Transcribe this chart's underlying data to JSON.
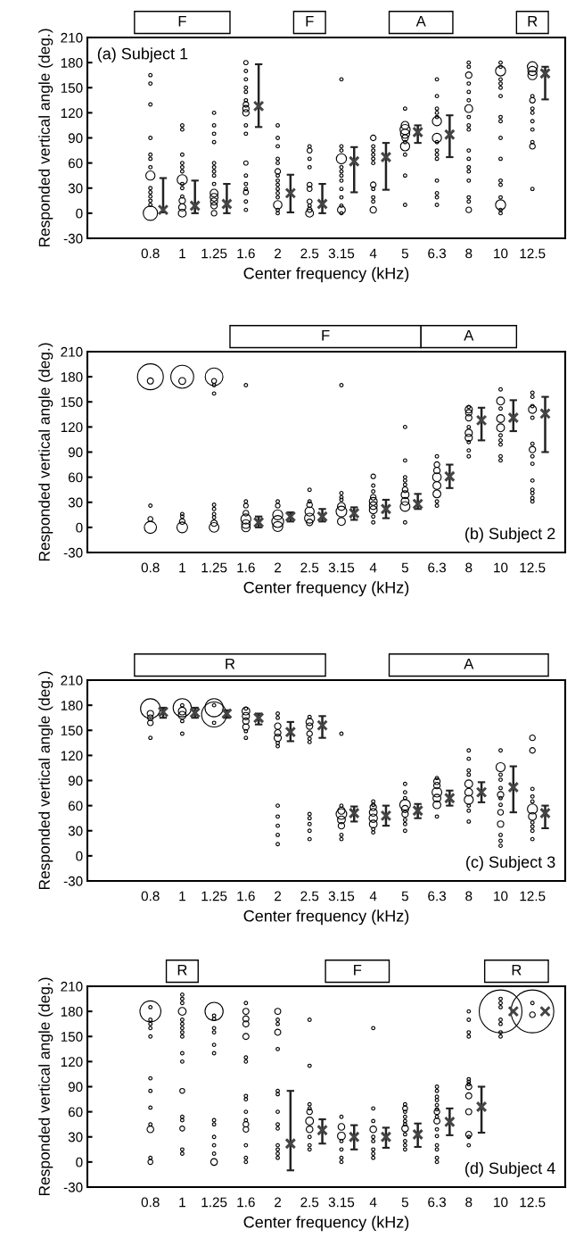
{
  "chart_data": [
    {
      "type": "bubble",
      "xlabel": "Center frequency (kHz)",
      "ylabel": "Responded vertical angle (deg.)",
      "annotations": [
        "(a) Subject 1",
        "F",
        "F",
        "A",
        "R"
      ],
      "categories": [
        "0.8",
        "1",
        "1.25",
        "1.6",
        "2",
        "2.5",
        "3.15",
        "4",
        "5",
        "6.3",
        "8",
        "10",
        "12.5"
      ],
      "ylim": [
        -30,
        210
      ],
      "yticks": [
        -30,
        0,
        30,
        60,
        90,
        120,
        150,
        180,
        210
      ],
      "series": [
        {
          "type": "bubble",
          "color": "#000000",
          "x": [
            "0.8",
            "0.8",
            "0.8",
            "0.8",
            "0.8",
            "0.8",
            "0.8",
            "0.8",
            "0.8",
            "0.8",
            "0.8",
            "0.8",
            "0.8",
            "0.8",
            "1",
            "1",
            "1",
            "1",
            "1",
            "1",
            "1",
            "1",
            "1",
            "1",
            "1",
            "1",
            "1",
            "1.25",
            "1.25",
            "1.25",
            "1.25",
            "1.25",
            "1.25",
            "1.25",
            "1.25",
            "1.25",
            "1.25",
            "1.25",
            "1.25",
            "1.25",
            "1.25",
            "1.6",
            "1.6",
            "1.6",
            "1.6",
            "1.6",
            "1.6",
            "1.6",
            "1.6",
            "1.6",
            "1.6",
            "1.6",
            "1.6",
            "1.6",
            "1.6",
            "1.6",
            "1.6",
            "1.6",
            "1.6",
            "2",
            "2",
            "2",
            "2",
            "2",
            "2",
            "2",
            "2",
            "2",
            "2",
            "2",
            "2",
            "2",
            "2",
            "2",
            "2.5",
            "2.5",
            "2.5",
            "2.5",
            "2.5",
            "2.5",
            "2.5",
            "2.5",
            "2.5",
            "2.5",
            "3.15",
            "3.15",
            "3.15",
            "3.15",
            "3.15",
            "3.15",
            "3.15",
            "3.15",
            "3.15",
            "3.15",
            "3.15",
            "3.15",
            "3.15",
            "4",
            "4",
            "4",
            "4",
            "4",
            "4",
            "4",
            "4",
            "4",
            "4",
            "4",
            "5",
            "5",
            "5",
            "5",
            "5",
            "5",
            "5",
            "5",
            "5",
            "5",
            "6.3",
            "6.3",
            "6.3",
            "6.3",
            "6.3",
            "6.3",
            "6.3",
            "6.3",
            "6.3",
            "6.3",
            "6.3",
            "6.3",
            "6.3",
            "6.3",
            "6.3",
            "8",
            "8",
            "8",
            "8",
            "8",
            "8",
            "8",
            "8",
            "8",
            "8",
            "8",
            "8",
            "8",
            "8",
            "8",
            "8",
            "8",
            "8",
            "10",
            "10",
            "10",
            "10",
            "10",
            "10",
            "10",
            "10",
            "10",
            "10",
            "10",
            "10",
            "10",
            "10",
            "10",
            "10",
            "10",
            "12.5",
            "12.5",
            "12.5",
            "12.5",
            "12.5",
            "12.5",
            "12.5",
            "12.5",
            "12.5",
            "12.5",
            "12.5",
            "12.5"
          ],
          "values": [
            165,
            155,
            130,
            90,
            70,
            65,
            55,
            45,
            30,
            25,
            20,
            15,
            10,
            0,
            105,
            100,
            70,
            60,
            55,
            50,
            40,
            35,
            30,
            20,
            15,
            7,
            0,
            120,
            105,
            95,
            85,
            60,
            55,
            50,
            45,
            35,
            24,
            19,
            14,
            9,
            0,
            180,
            170,
            160,
            150,
            145,
            135,
            130,
            125,
            120,
            105,
            95,
            60,
            45,
            35,
            29,
            25,
            14,
            4,
            105,
            90,
            80,
            65,
            60,
            50,
            45,
            39,
            34,
            29,
            24,
            19,
            10,
            4,
            0,
            80,
            75,
            65,
            55,
            34,
            29,
            14,
            9,
            4,
            0,
            160,
            80,
            75,
            65,
            55,
            50,
            45,
            39,
            29,
            19,
            9,
            4,
            0,
            90,
            80,
            75,
            70,
            65,
            60,
            34,
            29,
            19,
            14,
            4,
            125,
            105,
            100,
            95,
            90,
            85,
            80,
            70,
            45,
            10,
            160,
            140,
            125,
            120,
            115,
            110,
            90,
            85,
            75,
            70,
            65,
            39,
            24,
            19,
            10,
            180,
            175,
            165,
            155,
            145,
            135,
            125,
            115,
            105,
            100,
            75,
            65,
            55,
            50,
            39,
            19,
            14,
            4,
            180,
            175,
            170,
            160,
            155,
            150,
            140,
            115,
            110,
            90,
            65,
            39,
            34,
            19,
            10,
            4,
            0,
            175,
            170,
            165,
            140,
            135,
            125,
            120,
            110,
            100,
            85,
            80,
            29
          ],
          "sizes": [
            0.055,
            0.055,
            0.055,
            0.055,
            0.055,
            0.055,
            0.055,
            0.41,
            0.055,
            0.055,
            0.055,
            0.055,
            0.055,
            1,
            0.055,
            0.055,
            0.055,
            0.055,
            0.055,
            0.055,
            0.5,
            0.055,
            0.055,
            0.055,
            0.2,
            0.25,
            0.3,
            0.055,
            0.055,
            0.055,
            0.055,
            0.055,
            0.055,
            0.055,
            0.055,
            0.055,
            0.3,
            0.3,
            0.25,
            0.2,
            0.15,
            0.09,
            0.055,
            0.055,
            0.055,
            0.055,
            0.055,
            0.15,
            0.2,
            0.2,
            0.055,
            0.055,
            0.09,
            0.055,
            0.055,
            0.055,
            0.12,
            0.055,
            0.055,
            0.055,
            0.055,
            0.055,
            0.055,
            0.055,
            0.15,
            0.055,
            0.055,
            0.055,
            0.055,
            0.055,
            0.055,
            0.35,
            0.055,
            0.055,
            0.055,
            0.12,
            0.055,
            0.055,
            0.12,
            0.12,
            0.12,
            0.055,
            0.12,
            0.3,
            0.055,
            0.055,
            0.055,
            0.5,
            0.055,
            0.055,
            0.055,
            0.055,
            0.055,
            0.055,
            0.055,
            0.3,
            0.055,
            0.15,
            0.055,
            0.055,
            0.055,
            0.055,
            0.055,
            0.15,
            0.055,
            0.055,
            0.055,
            0.2,
            0.055,
            0.3,
            0.5,
            0.41,
            0.2,
            0.055,
            0.41,
            0.055,
            0.055,
            0.055,
            0.055,
            0.055,
            0.055,
            0.055,
            0.055,
            0.41,
            0.41,
            0.055,
            0.055,
            0.055,
            0.055,
            0.055,
            0.055,
            0.055,
            0.055,
            0.055,
            0.055,
            0.2,
            0.055,
            0.055,
            0.055,
            0.3,
            0.055,
            0.055,
            0.055,
            0.055,
            0.055,
            0.055,
            0.055,
            0.055,
            0.055,
            0.055,
            0.15,
            0.055,
            0.055,
            0.5,
            0.055,
            0.055,
            0.055,
            0.055,
            0.055,
            0.055,
            0.055,
            0.055,
            0.055,
            0.055,
            0.055,
            0.5,
            0.055,
            0.055,
            0.5,
            0.41,
            0.41,
            0.055,
            0.15,
            0.055,
            0.055,
            0.055,
            0.055,
            0.055,
            0.15,
            0.055
          ]
        },
        {
          "type": "scatter",
          "color": "#444444",
          "marker": "cross",
          "x": [
            "0.8",
            "1",
            "1.25",
            "1.6",
            "2",
            "2.5",
            "3.15",
            "4",
            "5",
            "6.3",
            "12.5"
          ],
          "values": [
            4,
            9,
            11,
            128,
            24,
            11,
            62,
            67,
            97,
            94,
            167
          ],
          "errors": [
            [
              1,
              42
            ],
            [
              0,
              39
            ],
            [
              0,
              35
            ],
            [
              103,
              178
            ],
            [
              1,
              46
            ],
            [
              0,
              35
            ],
            [
              25,
              79
            ],
            [
              28,
              84
            ],
            [
              84,
              105
            ],
            [
              67,
              117
            ],
            [
              136,
              175
            ]
          ]
        }
      ]
    },
    {
      "type": "bubble",
      "xlabel": "Center frequency (kHz)",
      "ylabel": "Responded vertical angle (deg.)",
      "annotations": [
        "(b) Subject 2",
        "F",
        "A"
      ],
      "categories": [
        "0.8",
        "1",
        "1.25",
        "1.6",
        "2",
        "2.5",
        "3.15",
        "4",
        "5",
        "6.3",
        "8",
        "10",
        "12.5"
      ],
      "ylim": [
        -30,
        210
      ],
      "yticks": [
        -30,
        0,
        30,
        60,
        90,
        120,
        150,
        180,
        210
      ],
      "series": [
        {
          "type": "bubble",
          "color": "#000000",
          "x": [
            "0.8",
            "0.8",
            "0.8",
            "0.8",
            "0.8",
            "1",
            "1",
            "1",
            "1",
            "1",
            "1",
            "1.25",
            "1.25",
            "1.25",
            "1.25",
            "1.25",
            "1.25",
            "1.25",
            "1.25",
            "1.25",
            "1.25",
            "1.6",
            "1.6",
            "1.6",
            "1.6",
            "1.6",
            "1.6",
            "1.6",
            "2",
            "2",
            "2",
            "2",
            "2",
            "2.5",
            "2.5",
            "2.5",
            "2.5",
            "2.5",
            "2.5",
            "3.15",
            "3.15",
            "3.15",
            "3.15",
            "3.15",
            "3.15",
            "3.15",
            "4",
            "4",
            "4",
            "4",
            "4",
            "4",
            "4",
            "4",
            "4",
            "5",
            "5",
            "5",
            "5",
            "5",
            "5",
            "5",
            "5",
            "5",
            "5",
            "6.3",
            "6.3",
            "6.3",
            "6.3",
            "6.3",
            "6.3",
            "6.3",
            "6.3",
            "8",
            "8",
            "8",
            "8",
            "8",
            "8",
            "8",
            "8",
            "8",
            "8",
            "10",
            "10",
            "10",
            "10",
            "10",
            "10",
            "10",
            "10",
            "10",
            "10",
            "12.5",
            "12.5",
            "12.5",
            "12.5",
            "12.5",
            "12.5",
            "12.5",
            "12.5",
            "12.5",
            "12.5",
            "12.5",
            "12.5",
            "12.5",
            "12.5"
          ],
          "values": [
            180,
            175,
            26,
            10,
            0,
            180,
            175,
            16,
            13,
            7,
            0,
            180,
            175,
            170,
            160,
            27,
            22,
            16,
            12,
            5,
            0,
            170,
            31,
            26,
            17,
            10,
            4,
            0,
            31,
            26,
            15,
            7,
            1,
            45,
            31,
            27,
            19,
            11,
            6,
            170,
            41,
            36,
            33,
            25,
            19,
            7,
            61,
            50,
            43,
            36,
            31,
            26,
            21,
            13,
            6,
            120,
            80,
            60,
            56,
            51,
            45,
            39,
            31,
            25,
            6,
            85,
            75,
            68,
            60,
            50,
            40,
            31,
            26,
            144,
            141,
            137,
            131,
            120,
            113,
            107,
            102,
            92,
            85,
            165,
            151,
            142,
            130,
            119,
            110,
            104,
            99,
            85,
            80,
            161,
            156,
            145,
            141,
            131,
            100,
            93,
            85,
            76,
            56,
            45,
            41,
            35,
            31
          ],
          "sizes": [
            1,
            0.056,
            0.017,
            0.036,
            0.22,
            0.78,
            0.07,
            0.017,
            0.017,
            0.047,
            0.17,
            0.47,
            0.036,
            0.017,
            0.017,
            0.017,
            0.017,
            0.017,
            0.017,
            0.061,
            0.14,
            0.017,
            0.017,
            0.031,
            0.047,
            0.15,
            0.11,
            0.11,
            0.017,
            0.031,
            0.15,
            0.21,
            0.15,
            0.017,
            0.017,
            0.047,
            0.125,
            0.15,
            0.061,
            0.017,
            0.017,
            0.017,
            0.017,
            0.092,
            0.17,
            0.092,
            0.031,
            0.017,
            0.017,
            0.047,
            0.092,
            0.092,
            0.092,
            0.017,
            0.017,
            0.017,
            0.017,
            0.017,
            0.017,
            0.017,
            0.047,
            0.092,
            0.092,
            0.14,
            0.017,
            0.017,
            0.047,
            0.061,
            0.11,
            0.092,
            0.092,
            0.017,
            0.017,
            0.017,
            0.078,
            0.061,
            0.061,
            0.017,
            0.078,
            0.078,
            0.017,
            0.017,
            0.017,
            0.017,
            0.092,
            0.017,
            0.092,
            0.092,
            0.017,
            0.017,
            0.017,
            0.017,
            0.017,
            0.017,
            0.017,
            0.017,
            0.092,
            0.017,
            0.017,
            0.061,
            0.017,
            0.017,
            0.017,
            0.017,
            0.017,
            0.017,
            0.017
          ]
        },
        {
          "type": "scatter",
          "color": "#444444",
          "marker": "cross",
          "x": [
            "1.6",
            "2",
            "2.5",
            "3.15",
            "4",
            "5",
            "6.3",
            "8",
            "10",
            "12.5"
          ],
          "values": [
            6,
            13,
            13,
            17,
            22,
            28,
            61,
            128,
            131,
            136
          ],
          "errors": [
            [
              0,
              13
            ],
            [
              7,
              18
            ],
            [
              7,
              22
            ],
            [
              9,
              24
            ],
            [
              11,
              33
            ],
            [
              22,
              40
            ],
            [
              47,
              75
            ],
            [
              104,
              143
            ],
            [
              115,
              152
            ],
            [
              90,
              156
            ]
          ]
        }
      ]
    },
    {
      "type": "bubble",
      "xlabel": "Center frequency (kHz)",
      "ylabel": "Responded vertical angle (deg.)",
      "annotations": [
        "(c) Subject 3",
        "R",
        "A"
      ],
      "categories": [
        "0.8",
        "1",
        "1.25",
        "1.6",
        "2",
        "2.5",
        "3.15",
        "4",
        "5",
        "6.3",
        "8",
        "10",
        "12.5"
      ],
      "ylim": [
        -30,
        210
      ],
      "yticks": [
        -30,
        0,
        30,
        60,
        90,
        120,
        150,
        180,
        210
      ],
      "series": [
        {
          "type": "bubble",
          "color": "#000000",
          "x": [
            "0.8",
            "0.8",
            "0.8",
            "0.8",
            "0.8",
            "1",
            "1",
            "1",
            "1",
            "1",
            "1",
            "1.25",
            "1.25",
            "1.25",
            "1.25",
            "1.6",
            "1.6",
            "1.6",
            "1.6",
            "1.6",
            "1.6",
            "1.6",
            "2",
            "2",
            "2",
            "2",
            "2",
            "2",
            "2",
            "2",
            "2",
            "2",
            "2",
            "2",
            "2.5",
            "2.5",
            "2.5",
            "2.5",
            "2.5",
            "2.5",
            "2.5",
            "2.5",
            "2.5",
            "2.5",
            "2.5",
            "3.15",
            "3.15",
            "3.15",
            "3.15",
            "3.15",
            "3.15",
            "3.15",
            "3.15",
            "4",
            "4",
            "4",
            "4",
            "4",
            "4",
            "4",
            "4",
            "5",
            "5",
            "5",
            "5",
            "5",
            "5",
            "5",
            "5",
            "5",
            "6.3",
            "6.3",
            "6.3",
            "6.3",
            "6.3",
            "6.3",
            "6.3",
            "8",
            "8",
            "8",
            "8",
            "8",
            "8",
            "8",
            "8",
            "8",
            "8",
            "10",
            "10",
            "10",
            "10",
            "10",
            "10",
            "10",
            "10",
            "10",
            "10",
            "10",
            "10",
            "10",
            "12.5",
            "12.5",
            "12.5",
            "12.5",
            "12.5",
            "12.5",
            "12.5",
            "12.5",
            "12.5",
            "12.5",
            "12.5"
          ],
          "values": [
            176,
            170,
            165,
            159,
            141,
            180,
            177,
            173,
            168,
            161,
            146,
            180,
            177,
            169,
            159,
            176,
            173,
            167,
            161,
            154,
            149,
            141,
            170,
            165,
            155,
            147,
            141,
            135,
            131,
            60,
            47,
            36,
            25,
            14,
            166,
            160,
            155,
            146,
            140,
            136,
            50,
            45,
            38,
            30,
            20,
            146,
            60,
            54,
            50,
            43,
            36,
            25,
            20,
            65,
            61,
            58,
            52,
            45,
            38,
            32,
            28,
            86,
            76,
            69,
            61,
            56,
            50,
            43,
            38,
            30,
            93,
            89,
            84,
            76,
            69,
            61,
            47,
            126,
            116,
            102,
            97,
            86,
            76,
            67,
            60,
            54,
            41,
            126,
            106,
            97,
            91,
            81,
            73,
            69,
            61,
            52,
            38,
            25,
            18,
            12,
            141,
            126,
            80,
            71,
            65,
            56,
            47,
            40,
            35,
            30,
            20
          ],
          "sizes": [
            0.62,
            0.065,
            0.05,
            0.05,
            0.018,
            0.018,
            0.53,
            0.097,
            0.097,
            0.018,
            0.018,
            0.018,
            0.53,
            1,
            0.018,
            0.018,
            0.097,
            0.082,
            0.065,
            0.065,
            0.018,
            0.018,
            0.018,
            0.018,
            0.065,
            0.065,
            0.082,
            0.018,
            0.018,
            0.018,
            0.018,
            0.018,
            0.018,
            0.018,
            0.018,
            0.082,
            0.065,
            0.05,
            0.018,
            0.018,
            0.018,
            0.018,
            0.018,
            0.018,
            0.018,
            0.018,
            0.018,
            0.082,
            0.18,
            0.097,
            0.065,
            0.018,
            0.018,
            0.018,
            0.018,
            0.065,
            0.097,
            0.11,
            0.097,
            0.018,
            0.018,
            0.018,
            0.018,
            0.018,
            0.18,
            0.082,
            0.065,
            0.018,
            0.018,
            0.018,
            0.018,
            0.065,
            0.065,
            0.15,
            0.097,
            0.097,
            0.018,
            0.018,
            0.018,
            0.018,
            0.018,
            0.097,
            0.097,
            0.13,
            0.018,
            0.018,
            0.018,
            0.018,
            0.13,
            0.018,
            0.018,
            0.018,
            0.065,
            0.018,
            0.018,
            0.05,
            0.065,
            0.018,
            0.018,
            0.018,
            0.05,
            0.05,
            0.018,
            0.018,
            0.018,
            0.16,
            0.097,
            0.018,
            0.018,
            0.018,
            0.018
          ]
        },
        {
          "type": "scatter",
          "color": "#444444",
          "marker": "cross",
          "x": [
            "0.8",
            "1",
            "1.25",
            "1.6",
            "2",
            "2.5",
            "3.15",
            "4",
            "5",
            "6.3",
            "8",
            "10",
            "12.5"
          ],
          "values": [
            172,
            171,
            170,
            165,
            148,
            156,
            51,
            48,
            54,
            69,
            76,
            82,
            51
          ],
          "errors": [
            [
              165,
              177
            ],
            [
              165,
              177
            ],
            [
              165,
              174
            ],
            [
              157,
              170
            ],
            [
              137,
              160
            ],
            [
              141,
              167
            ],
            [
              41,
              59
            ],
            [
              36,
              60
            ],
            [
              45,
              62
            ],
            [
              60,
              78
            ],
            [
              64,
              88
            ],
            [
              52,
              107
            ],
            [
              33,
              60
            ]
          ]
        }
      ]
    },
    {
      "type": "bubble",
      "xlabel": "Center frequency (kHz)",
      "ylabel": "Responded vertical angle (deg.)",
      "annotations": [
        "(d) Subject 4",
        "R",
        "F",
        "R"
      ],
      "categories": [
        "0.8",
        "1",
        "1.25",
        "1.6",
        "2",
        "2.5",
        "3.15",
        "4",
        "5",
        "6.3",
        "8",
        "10",
        "12.5"
      ],
      "ylim": [
        -30,
        210
      ],
      "yticks": [
        -30,
        0,
        30,
        60,
        90,
        120,
        150,
        180,
        210
      ],
      "series": [
        {
          "type": "bubble",
          "color": "#000000",
          "x": [
            "0.8",
            "0.8",
            "0.8",
            "0.8",
            "0.8",
            "0.8",
            "0.8",
            "0.8",
            "0.8",
            "0.8",
            "0.8",
            "0.8",
            "0.8",
            "1",
            "1",
            "1",
            "1",
            "1",
            "1",
            "1",
            "1",
            "1",
            "1",
            "1",
            "1",
            "1",
            "1",
            "1",
            "1",
            "1",
            "1.25",
            "1.25",
            "1.25",
            "1.25",
            "1.25",
            "1.25",
            "1.25",
            "1.25",
            "1.25",
            "1.25",
            "1.25",
            "1.25",
            "1.25",
            "1.6",
            "1.6",
            "1.6",
            "1.6",
            "1.6",
            "1.6",
            "1.6",
            "1.6",
            "1.6",
            "1.6",
            "1.6",
            "1.6",
            "1.6",
            "1.6",
            "1.6",
            "1.6",
            "2",
            "2",
            "2",
            "2",
            "2",
            "2",
            "2",
            "2",
            "2",
            "2",
            "2",
            "2",
            "2",
            "2",
            "2.5",
            "2.5",
            "2.5",
            "2.5",
            "2.5",
            "2.5",
            "2.5",
            "2.5",
            "2.5",
            "2.5",
            "3.15",
            "3.15",
            "3.15",
            "3.15",
            "3.15",
            "3.15",
            "3.15",
            "4",
            "4",
            "4",
            "4",
            "4",
            "4",
            "4",
            "4",
            "4",
            "5",
            "5",
            "5",
            "5",
            "5",
            "5",
            "5",
            "5",
            "5",
            "5",
            "5",
            "6.3",
            "6.3",
            "6.3",
            "6.3",
            "6.3",
            "6.3",
            "6.3",
            "6.3",
            "6.3",
            "6.3",
            "6.3",
            "6.3",
            "6.3",
            "6.3",
            "6.3",
            "8",
            "8",
            "8",
            "8",
            "8",
            "8",
            "8",
            "8",
            "8",
            "8",
            "8",
            "8",
            "8",
            "10",
            "10",
            "10",
            "10",
            "10",
            "10",
            "10",
            "10",
            "12.5",
            "12.5",
            "12.5"
          ],
          "values": [
            185,
            180,
            170,
            165,
            160,
            150,
            100,
            85,
            65,
            45,
            39,
            5,
            0,
            200,
            195,
            190,
            180,
            170,
            165,
            160,
            155,
            150,
            130,
            120,
            85,
            54,
            50,
            40,
            15,
            10,
            180,
            175,
            171,
            160,
            155,
            140,
            130,
            50,
            45,
            30,
            20,
            10,
            0,
            190,
            180,
            171,
            165,
            150,
            125,
            120,
            79,
            75,
            60,
            50,
            45,
            39,
            20,
            5,
            0,
            180,
            170,
            165,
            155,
            135,
            85,
            81,
            60,
            45,
            40,
            20,
            15,
            10,
            5,
            170,
            115,
            69,
            64,
            60,
            49,
            39,
            30,
            20,
            15,
            54,
            42,
            31,
            25,
            15,
            5,
            0,
            160,
            64,
            49,
            39,
            30,
            25,
            15,
            10,
            5,
            69,
            64,
            60,
            54,
            49,
            45,
            40,
            33,
            25,
            20,
            15,
            90,
            85,
            78,
            74,
            68,
            63,
            60,
            54,
            49,
            39,
            31,
            20,
            15,
            5,
            0,
            180,
            170,
            155,
            150,
            99,
            96,
            93,
            90,
            79,
            60,
            33,
            30,
            20,
            195,
            190,
            185,
            180,
            170,
            165,
            155,
            150,
            190,
            180,
            176
          ],
          "sizes": [
            0.006,
            0.24,
            0.006,
            0.006,
            0.006,
            0.006,
            0.006,
            0.006,
            0.006,
            0.006,
            0.024,
            0.006,
            0.013,
            0.006,
            0.006,
            0.006,
            0.033,
            0.006,
            0.006,
            0.006,
            0.006,
            0.006,
            0.006,
            0.006,
            0.013,
            0.006,
            0.006,
            0.013,
            0.006,
            0.006,
            0.18,
            0.006,
            0.006,
            0.006,
            0.006,
            0.006,
            0.006,
            0.006,
            0.006,
            0.006,
            0.006,
            0.006,
            0.024,
            0.006,
            0.02,
            0.02,
            0.02,
            0.02,
            0.006,
            0.006,
            0.006,
            0.006,
            0.006,
            0.006,
            0.017,
            0.017,
            0.006,
            0.006,
            0.006,
            0.02,
            0.006,
            0.006,
            0.02,
            0.006,
            0.006,
            0.006,
            0.006,
            0.006,
            0.006,
            0.006,
            0.006,
            0.006,
            0.006,
            0.006,
            0.006,
            0.006,
            0.006,
            0.017,
            0.033,
            0.024,
            0.006,
            0.006,
            0.006,
            0.006,
            0.024,
            0.033,
            0.006,
            0.006,
            0.006,
            0.006,
            0.006,
            0.006,
            0.006,
            0.024,
            0.006,
            0.006,
            0.006,
            0.006,
            0.006,
            0.006,
            0.013,
            0.006,
            0.006,
            0.006,
            0.006,
            0.024,
            0.006,
            0.006,
            0.006,
            0.006,
            0.006,
            0.006,
            0.006,
            0.006,
            0.006,
            0.006,
            0.017,
            0.006,
            0.02,
            0.006,
            0.006,
            0.006,
            0.006,
            0.006,
            0.006,
            0.006,
            0.006,
            0.006,
            0.006,
            0.006,
            0.006,
            0.006,
            0.02,
            0.02,
            0.02,
            0.02,
            0.006,
            0.006,
            0.006,
            0.006,
            0.006,
            1.0,
            0.006,
            0.006,
            0.006,
            0.006,
            0.006,
            1.0,
            0.017
          ]
        },
        {
          "type": "scatter",
          "color": "#444444",
          "marker": "cross",
          "x": [
            "2",
            "2.5",
            "3.15",
            "4",
            "5",
            "6.3",
            "8",
            "10",
            "12.5"
          ],
          "values": [
            22,
            38,
            30,
            30,
            33,
            48,
            66,
            180,
            180
          ],
          "errors": [
            [
              -10,
              85
            ],
            [
              22,
              51
            ],
            [
              15,
              44
            ],
            [
              17,
              41
            ],
            [
              18,
              46
            ],
            [
              32,
              64
            ],
            [
              35,
              90
            ],
            null,
            null
          ]
        }
      ]
    }
  ]
}
